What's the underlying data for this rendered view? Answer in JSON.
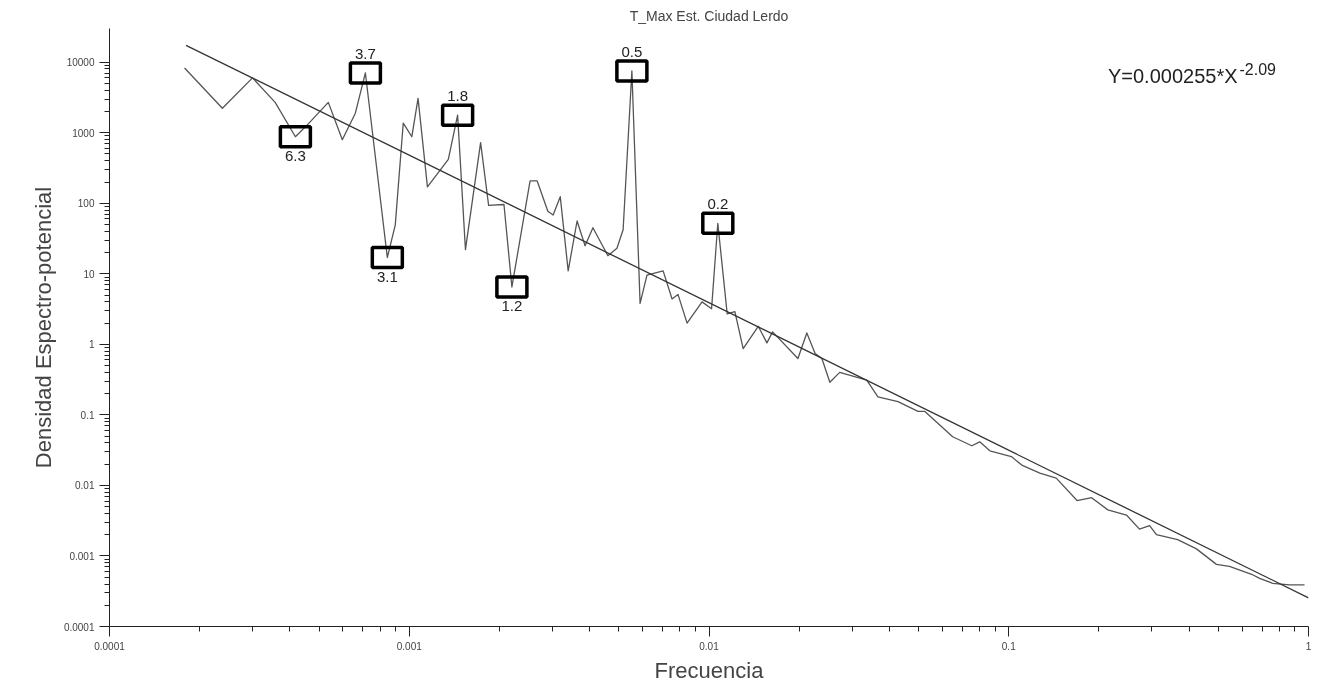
{
  "chart_data": {
    "type": "line",
    "title": "T_Max Est. Ciudad Lerdo",
    "xlabel": "Frecuencia",
    "ylabel": "Densidad Espectro-potencial",
    "log": "xy",
    "grid": false,
    "marker": "none",
    "line_style": "solid",
    "xlim": [
      0.0001,
      1
    ],
    "ylim": [
      0.0001,
      30000
    ],
    "xticks": [
      0.0001,
      0.001,
      0.01,
      0.1,
      1
    ],
    "yticks": [
      0.0001,
      0.001,
      0.01,
      0.1,
      1,
      10,
      100,
      1000,
      10000
    ],
    "series": [
      {
        "color": "#555555",
        "x": [
          0.000178,
          0.000238,
          0.0003,
          0.000357,
          0.000417,
          0.000457,
          0.000537,
          0.000598,
          0.000661,
          0.000714,
          0.000845,
          0.000898,
          0.000955,
          0.00102,
          0.00107,
          0.00115,
          0.00135,
          0.00145,
          0.00154,
          0.00173,
          0.00184,
          0.00207,
          0.0022,
          0.00253,
          0.00267,
          0.0029,
          0.00302,
          0.00319,
          0.00339,
          0.00363,
          0.00386,
          0.0041,
          0.0046,
          0.00493,
          0.00517,
          0.00553,
          0.00589,
          0.00621,
          0.00703,
          0.00753,
          0.00788,
          0.00845,
          0.00948,
          0.0102,
          0.0107,
          0.0115,
          0.0122,
          0.013,
          0.0146,
          0.0156,
          0.0163,
          0.0198,
          0.0212,
          0.0226,
          0.0238,
          0.0253,
          0.0273,
          0.0336,
          0.0366,
          0.0427,
          0.0498,
          0.0525,
          0.065,
          0.0753,
          0.08,
          0.0865,
          0.102,
          0.111,
          0.127,
          0.144,
          0.169,
          0.189,
          0.214,
          0.247,
          0.273,
          0.295,
          0.311,
          0.366,
          0.423,
          0.493,
          0.545,
          0.646,
          0.687,
          0.759,
          0.865,
          0.97
        ],
        "values": [
          8260,
          2220,
          5990,
          2690,
          877,
          1290,
          2690,
          796,
          1890,
          7030,
          17,
          49,
          1370,
          877,
          3060,
          171,
          420,
          1770,
          22,
          724,
          93,
          96,
          6.5,
          208,
          208,
          77,
          68,
          124,
          11,
          56,
          25,
          45,
          18,
          23,
          42,
          7500,
          3.8,
          9.6,
          11,
          4.4,
          5.1,
          2,
          4,
          3.2,
          52,
          2.7,
          2.9,
          0.87,
          1.8,
          1.05,
          1.5,
          0.63,
          1.45,
          0.74,
          0.63,
          0.29,
          0.4,
          0.31,
          0.18,
          0.154,
          0.112,
          0.112,
          0.049,
          0.0365,
          0.0415,
          0.031,
          0.0256,
          0.0192,
          0.0149,
          0.0127,
          0.0061,
          0.0067,
          0.0045,
          0.0038,
          0.0024,
          0.0027,
          0.002,
          0.0017,
          0.00126,
          0.00076,
          0.00071,
          0.00055,
          0.00048,
          0.00041,
          0.00039,
          0.00039
        ]
      },
      {
        "color": "#333333",
        "x": [
          0.00018,
          1
        ],
        "values": [
          17300,
          0.000255
        ]
      }
    ],
    "annotations": [
      "Y=0.000255*X$^{-2.09}$",
      {
        "text": "3.7",
        "x": 0.000714,
        "y": 7030
      },
      {
        "text": "6.3",
        "x": 0.000417,
        "y": 877
      },
      {
        "text": "3.1",
        "x": 0.000845,
        "y": 17
      },
      {
        "text": "1.8",
        "x": 0.00145,
        "y": 1770
      },
      {
        "text": "1.2",
        "x": 0.0022,
        "y": 6.5
      },
      {
        "text": "0.5",
        "x": 0.00553,
        "y": 7500
      },
      {
        "text": "0.2",
        "x": 0.0107,
        "y": 52
      }
    ]
  }
}
